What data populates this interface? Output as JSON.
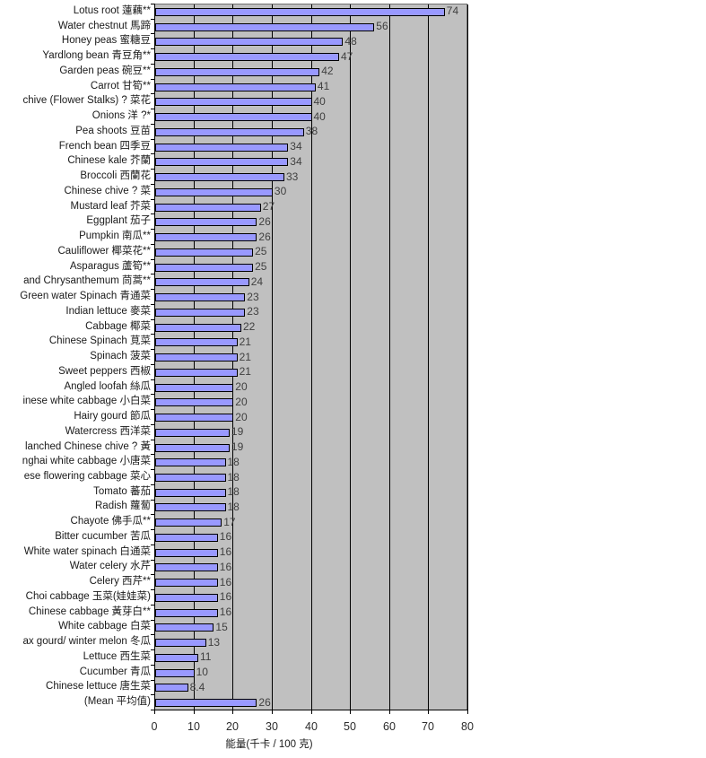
{
  "chart_data": {
    "type": "bar",
    "orientation": "horizontal",
    "title": "",
    "xlabel": "能量(千卡 / 100 克)",
    "ylabel": "",
    "xlim": [
      0,
      80
    ],
    "xticks": [
      "0",
      "10",
      "20",
      "30",
      "40",
      "50",
      "60",
      "70",
      "80"
    ],
    "grid": true,
    "legend": "none",
    "plot_background": "#C0C0C0",
    "bar_fill": "#9999FF",
    "bar_border": "#000000",
    "categories": [
      "Lotus root 蓮藕**",
      "Water chestnut 馬蹄",
      "Honey peas 蜜糖豆",
      "Yardlong bean 青豆角**",
      "Garden peas 碗豆**",
      "Carrot 甘筍**",
      "chive (Flower Stalks) ? 菜花",
      "Onions 洋  ?*",
      "Pea shoots 豆苗",
      "French bean 四季豆",
      "Chinese kale 芥蘭",
      "Broccoli 西蘭花",
      "Chinese chive ? 菜",
      "Mustard leaf 芥菜",
      "Eggplant 茄子",
      "Pumpkin 南瓜**",
      "Cauliflower 椰菜花**",
      "Asparagus 蘆筍**",
      "and Chrysanthemum 茼蒿**",
      "Green water Spinach 青通菜",
      "Indian lettuce 麥菜",
      "Cabbage 椰菜",
      "Chinese Spinach 莧菜",
      "Spinach 菠菜",
      "Sweet peppers 西椒",
      "Angled loofah 絲瓜",
      "inese white cabbage 小白菜",
      "Hairy gourd 節瓜",
      "Watercress 西洋菜",
      "lanched Chinese chive ? 黃",
      "nghai white cabbage 小唐菜",
      "ese flowering cabbage 菜心",
      "Tomato 蕃茄",
      "Radish 蘿蔔",
      "Chayote 佛手瓜**",
      "Bitter cucumber 苦瓜",
      "White water spinach 白通菜",
      "Water celery 水芹",
      "Celery 西芹**",
      "Choi cabbage 玉菜(娃娃菜)",
      "Chinese cabbage 黃芽白**",
      "White cabbage 白菜",
      "ax gourd/ winter melon 冬瓜",
      "Lettuce 西生菜",
      "Cucumber 青瓜",
      "Chinese lettuce 唐生菜",
      "(Mean 平均值)"
    ],
    "values": [
      74,
      56,
      48,
      47,
      42,
      41,
      40,
      40,
      38,
      34,
      34,
      33,
      30,
      27,
      26,
      26,
      25,
      25,
      24,
      23,
      23,
      22,
      21,
      21,
      21,
      20,
      20,
      20,
      19,
      19,
      18,
      18,
      18,
      18,
      17,
      16,
      16,
      16,
      16,
      16,
      16,
      15,
      13,
      11,
      10,
      8.4,
      26
    ]
  }
}
